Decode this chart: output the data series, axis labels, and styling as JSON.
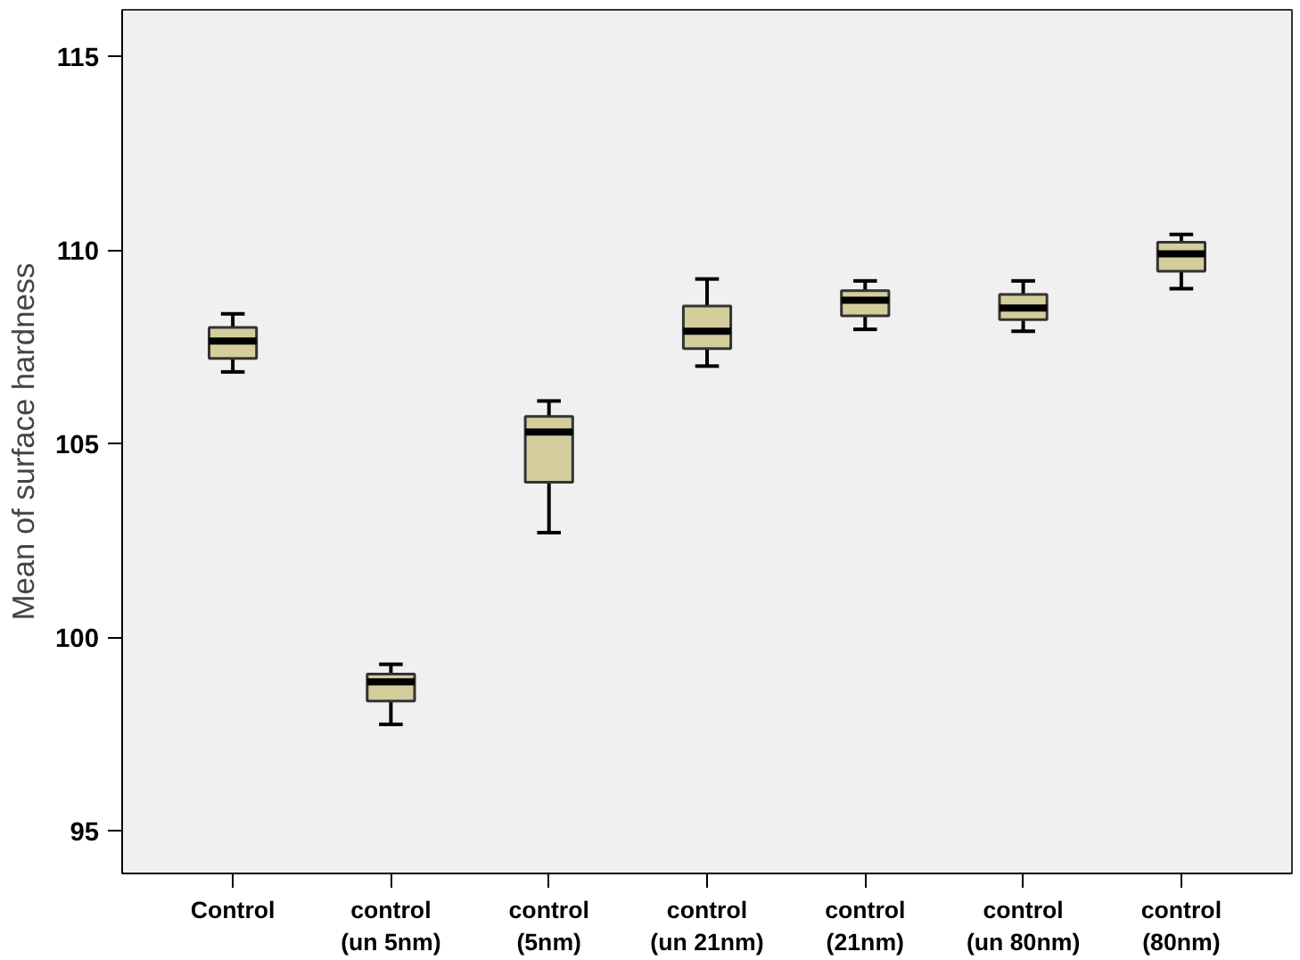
{
  "chart_data": {
    "type": "box",
    "ylabel": "Mean of surface hardness",
    "categories": [
      "Control",
      "control\n(un 5nm)",
      "control\n(5nm)",
      "control\n(un 21nm)",
      "control\n(21nm)",
      "control\n(un 80nm)",
      "control\n(80nm)"
    ],
    "boxes": [
      {
        "low": 106.85,
        "q1": 107.2,
        "median": 107.65,
        "q3": 108.0,
        "high": 108.35
      },
      {
        "low": 97.75,
        "q1": 98.35,
        "median": 98.85,
        "q3": 99.05,
        "high": 99.3
      },
      {
        "low": 102.7,
        "q1": 104.0,
        "median": 105.3,
        "q3": 105.7,
        "high": 106.1
      },
      {
        "low": 107.0,
        "q1": 107.45,
        "median": 107.9,
        "q3": 108.55,
        "high": 109.25
      },
      {
        "low": 107.95,
        "q1": 108.3,
        "median": 108.7,
        "q3": 108.95,
        "high": 109.2
      },
      {
        "low": 107.9,
        "q1": 108.2,
        "median": 108.5,
        "q3": 108.85,
        "high": 109.2
      },
      {
        "low": 109.0,
        "q1": 109.45,
        "median": 109.9,
        "q3": 110.2,
        "high": 110.4
      }
    ],
    "color": "#d4cd9c",
    "ylim": [
      93.9,
      116.2
    ],
    "yticks": [
      95,
      100,
      105,
      110,
      115
    ],
    "grid": false
  }
}
